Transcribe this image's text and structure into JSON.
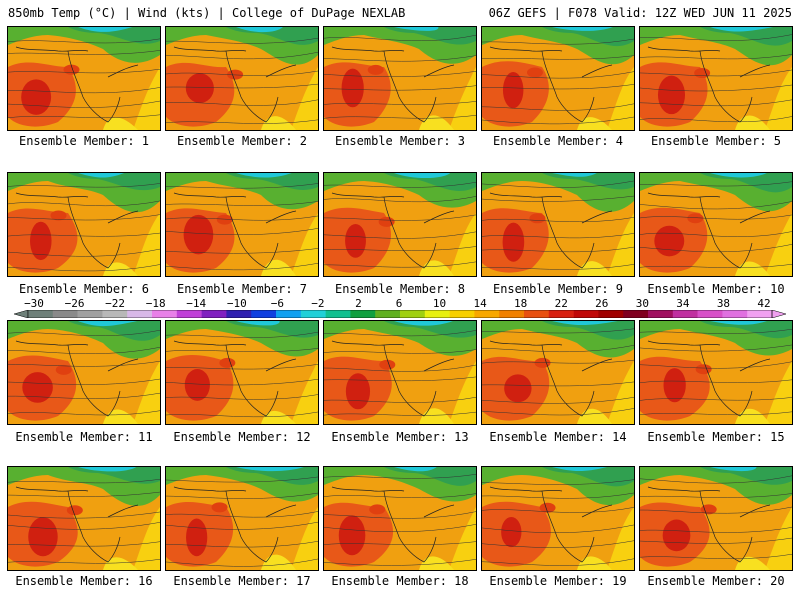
{
  "header": {
    "left": "850mb Temp (°C) | Wind (kts) | College of DuPage NEXLAB",
    "right": "06Z GEFS | F078 Valid: 12Z WED JUN 11 2025"
  },
  "colorbar": {
    "labels": [
      "-30",
      "-26",
      "-22",
      "-18",
      "-14",
      "-10",
      "-6",
      "-2",
      "2",
      "6",
      "10",
      "14",
      "18",
      "22",
      "26",
      "30",
      "34",
      "38",
      "42"
    ],
    "colors": [
      "#6e8079",
      "#8a8a8a",
      "#a0a0a0",
      "#b8b8b8",
      "#d8b8e8",
      "#e880e8",
      "#c040d8",
      "#8020c0",
      "#3020b0",
      "#1040e0",
      "#10a0f0",
      "#20d0d8",
      "#10c090",
      "#10a040",
      "#60b020",
      "#a0d010",
      "#e8f010",
      "#f8d000",
      "#f8a800",
      "#f08000",
      "#e85010",
      "#d82010",
      "#c00808",
      "#a00000",
      "#800020",
      "#a01060",
      "#c030a0",
      "#d850c8",
      "#e070e0",
      "#f0a0f0"
    ]
  },
  "panels": [
    {
      "caption": "Ensemble Member: 1"
    },
    {
      "caption": "Ensemble Member: 2"
    },
    {
      "caption": "Ensemble Member: 3"
    },
    {
      "caption": "Ensemble Member: 4"
    },
    {
      "caption": "Ensemble Member: 5"
    },
    {
      "caption": "Ensemble Member: 6"
    },
    {
      "caption": "Ensemble Member: 7"
    },
    {
      "caption": "Ensemble Member: 8"
    },
    {
      "caption": "Ensemble Member: 9"
    },
    {
      "caption": "Ensemble Member: 10"
    },
    {
      "caption": "Ensemble Member: 11"
    },
    {
      "caption": "Ensemble Member: 12"
    },
    {
      "caption": "Ensemble Member: 13"
    },
    {
      "caption": "Ensemble Member: 14"
    },
    {
      "caption": "Ensemble Member: 15"
    },
    {
      "caption": "Ensemble Member: 16"
    },
    {
      "caption": "Ensemble Member: 17"
    },
    {
      "caption": "Ensemble Member: 18"
    },
    {
      "caption": "Ensemble Member: 19"
    },
    {
      "caption": "Ensemble Member: 20"
    }
  ]
}
